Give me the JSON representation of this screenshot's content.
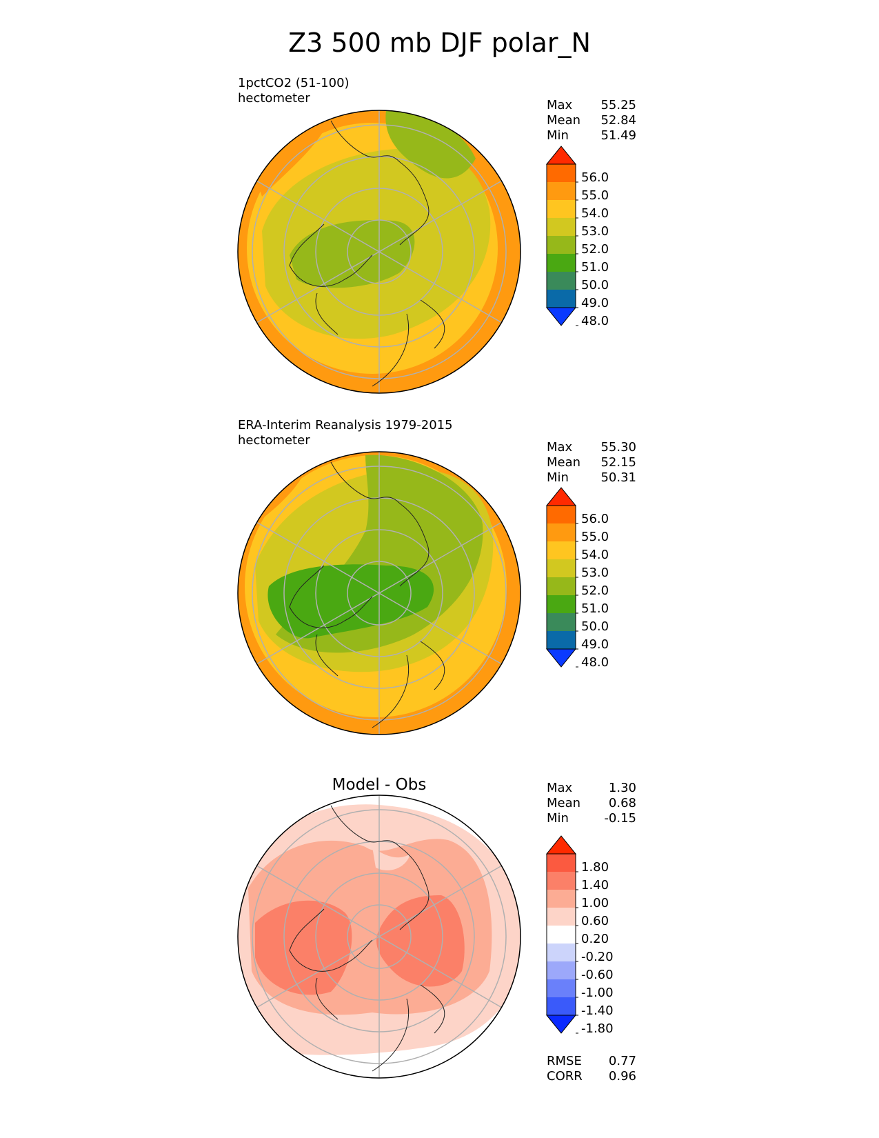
{
  "figure": {
    "title": "Z3 500 mb DJF polar_N"
  },
  "panels": [
    {
      "title_line1": "1pctCO2 (51-100)",
      "units": "hectometer",
      "stats": [
        {
          "label": "Max",
          "value": "55.25"
        },
        {
          "label": "Mean",
          "value": "52.84"
        },
        {
          "label": "Min",
          "value": "51.49"
        }
      ]
    },
    {
      "title_line1": "ERA-Interim Reanalysis 1979-2015",
      "units": "hectometer",
      "stats": [
        {
          "label": "Max",
          "value": "55.30"
        },
        {
          "label": "Mean",
          "value": "52.15"
        },
        {
          "label": "Min",
          "value": "50.31"
        }
      ]
    },
    {
      "title": "Model - Obs",
      "stats": [
        {
          "label": "Max",
          "value": "1.30"
        },
        {
          "label": "Mean",
          "value": "0.68"
        },
        {
          "label": "Min",
          "value": "-0.15"
        }
      ],
      "metrics": [
        {
          "label": "RMSE",
          "value": "0.77"
        },
        {
          "label": "CORR",
          "value": "0.96"
        }
      ]
    }
  ],
  "colorbars": {
    "field": {
      "ticks": [
        "56.0",
        "55.0",
        "54.0",
        "53.0",
        "52.0",
        "51.0",
        "50.0",
        "49.0",
        "48.0"
      ],
      "colors": [
        "#ff2a00",
        "#ff6a00",
        "#ff9a10",
        "#ffc520",
        "#d2c820",
        "#96b81a",
        "#4aa812",
        "#3a8a5a",
        "#0a6aa8",
        "#0a3aff"
      ]
    },
    "diff": {
      "ticks": [
        "1.80",
        "1.40",
        "1.00",
        "0.60",
        "0.20",
        "-0.20",
        "-0.60",
        "-1.00",
        "-1.40",
        "-1.80"
      ],
      "colors": [
        "#ff2a00",
        "#fb5a40",
        "#fb8068",
        "#fcac94",
        "#fdd4c8",
        "#ffffff",
        "#ccd4fb",
        "#9ca8fa",
        "#6a80fa",
        "#3a5afa",
        "#0a2aff"
      ]
    }
  }
}
